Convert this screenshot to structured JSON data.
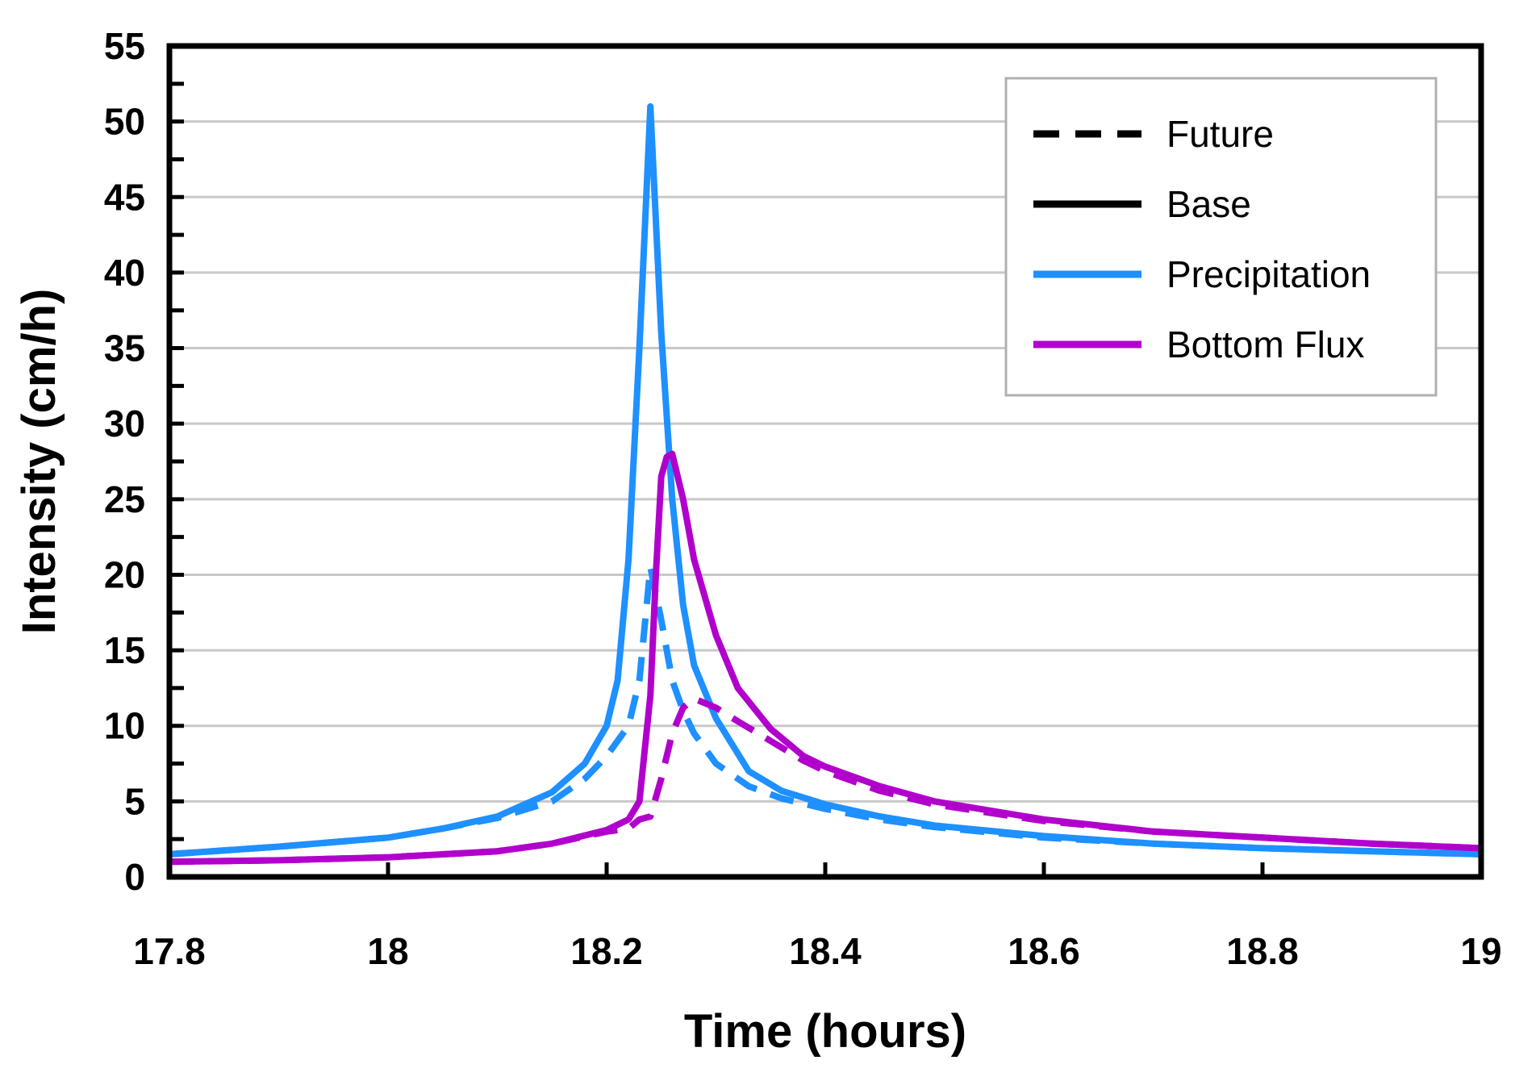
{
  "chart_data": {
    "type": "line",
    "title": "",
    "xlabel": "Time (hours)",
    "ylabel": "Intensity (cm/h)",
    "xlim": [
      17.8,
      19
    ],
    "ylim": [
      0,
      55
    ],
    "x_ticks": [
      "17.8",
      "18",
      "18.2",
      "18.4",
      "18.6",
      "18.8",
      "19"
    ],
    "y_ticks": [
      "0",
      "5",
      "10",
      "15",
      "20",
      "25",
      "30",
      "35",
      "40",
      "45",
      "50",
      "55"
    ],
    "grid": "horizontal",
    "legend_position": "top-right",
    "legend": [
      {
        "label": "Future",
        "style": "dashed",
        "color": "#000000"
      },
      {
        "label": "Base",
        "style": "solid",
        "color": "#000000"
      },
      {
        "label": "Precipitation",
        "style": "solid",
        "color": "#1e90ff"
      },
      {
        "label": "Bottom Flux",
        "style": "solid",
        "color": "#b100cc"
      }
    ],
    "series": [
      {
        "name": "Precipitation Base",
        "color": "#1e90ff",
        "dash": "solid",
        "x": [
          17.8,
          17.9,
          18.0,
          18.05,
          18.1,
          18.15,
          18.18,
          18.2,
          18.21,
          18.22,
          18.23,
          18.24,
          18.25,
          18.26,
          18.27,
          18.28,
          18.3,
          18.33,
          18.36,
          18.4,
          18.45,
          18.5,
          18.6,
          18.7,
          18.8,
          18.9,
          19.0
        ],
        "y": [
          1.5,
          2.0,
          2.6,
          3.2,
          4.0,
          5.6,
          7.5,
          10.0,
          13.0,
          21.0,
          35.0,
          51.0,
          36.0,
          25.0,
          18.0,
          14.0,
          10.5,
          7.0,
          5.7,
          4.8,
          4.0,
          3.4,
          2.7,
          2.2,
          1.9,
          1.7,
          1.5
        ]
      },
      {
        "name": "Precipitation Future",
        "color": "#1e90ff",
        "dash": "dashed",
        "x": [
          17.8,
          17.9,
          18.0,
          18.05,
          18.1,
          18.15,
          18.18,
          18.2,
          18.22,
          18.23,
          18.24,
          18.25,
          18.26,
          18.27,
          18.28,
          18.3,
          18.33,
          18.36,
          18.4,
          18.45,
          18.5,
          18.6,
          18.7,
          18.8,
          18.9,
          19.0
        ],
        "y": [
          1.5,
          2.0,
          2.6,
          3.2,
          3.9,
          5.0,
          6.5,
          8.0,
          10.0,
          13.0,
          20.5,
          17.0,
          13.0,
          11.0,
          9.5,
          7.5,
          6.0,
          5.2,
          4.5,
          3.8,
          3.3,
          2.6,
          2.2,
          1.9,
          1.7,
          1.5
        ]
      },
      {
        "name": "Bottom Flux Base",
        "color": "#b100cc",
        "dash": "solid",
        "x": [
          17.8,
          17.9,
          18.0,
          18.1,
          18.15,
          18.2,
          18.22,
          18.23,
          18.24,
          18.245,
          18.25,
          18.255,
          18.26,
          18.27,
          18.28,
          18.3,
          18.32,
          18.35,
          18.38,
          18.4,
          18.45,
          18.5,
          18.6,
          18.7,
          18.8,
          18.9,
          19.0
        ],
        "y": [
          1.0,
          1.1,
          1.3,
          1.7,
          2.2,
          3.1,
          3.8,
          5.0,
          12.0,
          20.0,
          26.5,
          27.8,
          28.0,
          25.0,
          21.0,
          16.0,
          12.5,
          9.8,
          8.0,
          7.3,
          6.0,
          5.0,
          3.8,
          3.0,
          2.6,
          2.2,
          1.9
        ]
      },
      {
        "name": "Bottom Flux Future",
        "color": "#b100cc",
        "dash": "dashed",
        "x": [
          17.8,
          17.9,
          18.0,
          18.1,
          18.15,
          18.2,
          18.22,
          18.23,
          18.24,
          18.25,
          18.26,
          18.27,
          18.28,
          18.3,
          18.32,
          18.35,
          18.38,
          18.4,
          18.45,
          18.5,
          18.6,
          18.7,
          18.8,
          18.9,
          19.0
        ],
        "y": [
          1.0,
          1.1,
          1.3,
          1.7,
          2.2,
          3.0,
          3.2,
          3.8,
          4.0,
          6.5,
          9.5,
          11.2,
          11.8,
          11.2,
          10.3,
          9.0,
          7.7,
          7.0,
          5.7,
          4.8,
          3.7,
          3.0,
          2.6,
          2.2,
          1.9
        ]
      }
    ]
  }
}
